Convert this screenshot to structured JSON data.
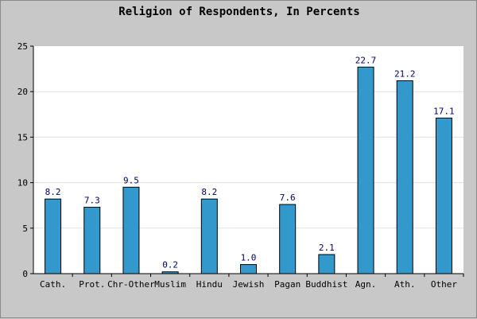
{
  "chart_data": {
    "type": "bar",
    "title": "Religion of Respondents, In Percents",
    "xlabel": "",
    "ylabel": "",
    "ylim": [
      0,
      25
    ],
    "yticks": [
      0,
      5,
      10,
      15,
      20,
      25
    ],
    "grid": true,
    "categories": [
      "Cath.",
      "Prot.",
      "Chr-Other",
      "Muslim",
      "Hindu",
      "Jewish",
      "Pagan",
      "Buddhist",
      "Agn.",
      "Ath.",
      "Other"
    ],
    "values": [
      8.2,
      7.3,
      9.5,
      0.2,
      8.2,
      1.0,
      7.6,
      2.1,
      22.7,
      21.2,
      17.1
    ],
    "data_labels": [
      "8.2",
      "7.3",
      "9.5",
      "0.2",
      "8.2",
      "1.0",
      "7.6",
      "2.1",
      "22.7",
      "21.2",
      "17.1"
    ],
    "colors": {
      "background": "#c8c8c8",
      "plot_background": "#ffffff",
      "bar_fill": "#3399cc",
      "bar_stroke": "#000000",
      "grid": "#e0e0e0",
      "axis": "#000000",
      "title_text": "#000000",
      "label_text": "#000066"
    }
  }
}
